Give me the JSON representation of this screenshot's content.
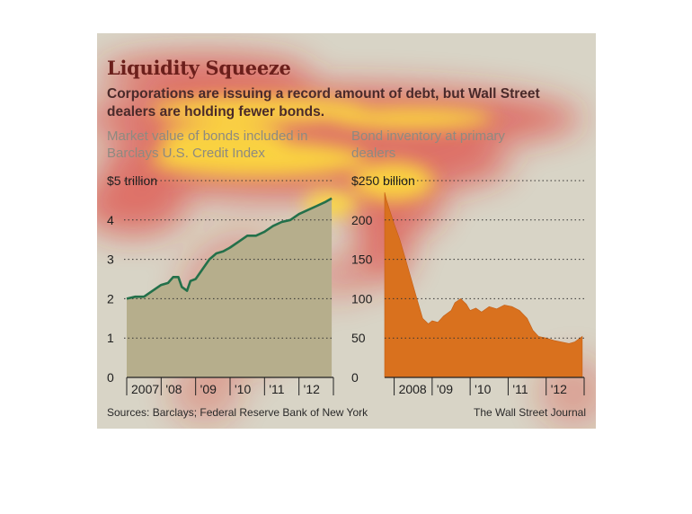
{
  "title": "Liquidity Squeeze",
  "subtitle": "Corporations are issuing a record amount of debt, but Wall Street dealers are holding fewer bonds.",
  "source": "Sources: Barclays; Federal Reserve Bank of New York",
  "credit": "The Wall Street Journal",
  "colors": {
    "bond_line": "#23704a",
    "bond_fill": "#b6ae8c",
    "inventory_fill": "#d9711e",
    "title": "#6b1f1b",
    "background": "#d8d4c6"
  },
  "chart_data": [
    {
      "type": "area",
      "caption": "Market value of bonds included in Barclays U.S. Credit Index",
      "y_tick_labels": [
        "$5 trillion",
        "4",
        "3",
        "2",
        "1",
        "0"
      ],
      "y_ticks": [
        5,
        4,
        3,
        2,
        1,
        0
      ],
      "ylim": [
        0,
        5
      ],
      "x_tick_labels": [
        "2007",
        "'08",
        "'09",
        "'10",
        "'11",
        "'12"
      ],
      "xlim": [
        2007.0,
        2013.0
      ],
      "grid": true,
      "x": [
        2007.0,
        2007.25,
        2007.5,
        2007.75,
        2008.0,
        2008.2,
        2008.35,
        2008.5,
        2008.6,
        2008.75,
        2008.85,
        2009.0,
        2009.2,
        2009.4,
        2009.6,
        2009.8,
        2010.0,
        2010.25,
        2010.5,
        2010.75,
        2011.0,
        2011.25,
        2011.5,
        2011.75,
        2012.0,
        2012.25,
        2012.5,
        2012.75,
        2012.95
      ],
      "values": [
        2.0,
        2.05,
        2.05,
        2.2,
        2.35,
        2.4,
        2.55,
        2.55,
        2.3,
        2.2,
        2.45,
        2.5,
        2.75,
        3.0,
        3.15,
        3.2,
        3.3,
        3.45,
        3.6,
        3.6,
        3.7,
        3.85,
        3.95,
        4.0,
        4.15,
        4.25,
        4.35,
        4.45,
        4.55
      ]
    },
    {
      "type": "area",
      "caption": "Bond inventory at primary dealers",
      "y_tick_labels": [
        "$250 billion",
        "200",
        "150",
        "100",
        "50",
        "0"
      ],
      "y_ticks": [
        250,
        200,
        150,
        100,
        50,
        0
      ],
      "ylim": [
        0,
        250
      ],
      "x_tick_labels": [
        "2008",
        "'09",
        "'10",
        "'11",
        "'12"
      ],
      "xlim": [
        2007.75,
        2013.0
      ],
      "grid": true,
      "x": [
        2007.75,
        2007.8,
        2007.9,
        2008.0,
        2008.15,
        2008.3,
        2008.45,
        2008.6,
        2008.75,
        2008.9,
        2009.0,
        2009.15,
        2009.3,
        2009.5,
        2009.6,
        2009.75,
        2009.9,
        2010.0,
        2010.15,
        2010.3,
        2010.5,
        2010.7,
        2010.9,
        2011.1,
        2011.3,
        2011.5,
        2011.65,
        2011.8,
        2012.0,
        2012.2,
        2012.4,
        2012.6,
        2012.75,
        2012.95
      ],
      "values": [
        235,
        225,
        210,
        195,
        175,
        150,
        125,
        100,
        75,
        68,
        72,
        70,
        78,
        85,
        95,
        100,
        93,
        85,
        88,
        83,
        90,
        87,
        92,
        90,
        85,
        75,
        60,
        52,
        50,
        47,
        45,
        43,
        45,
        52
      ]
    }
  ]
}
